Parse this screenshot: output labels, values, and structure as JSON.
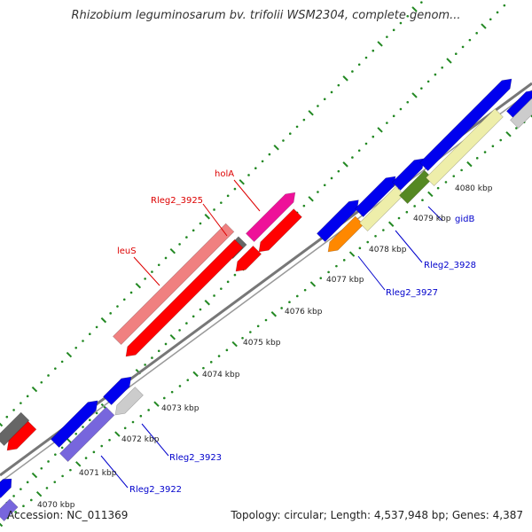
{
  "title": "Rhizobium leguminosarum bv. trifolii WSM2304, complete genom...",
  "footer": {
    "accession": "Accession: NC_011369",
    "summary": "Topology: circular; Length: 4,537,948 bp; Genes: 4,387"
  },
  "colors": {
    "blue": "#0000ee",
    "red": "#ff0000",
    "pink": "#f08080",
    "magenta": "#ee1199",
    "gray": "#666666",
    "light_gray": "#cccccc",
    "pale_yellow": "#eeeeaa",
    "olive": "#558822",
    "orange": "#ff8800",
    "lavender": "#7766dd",
    "dot_green": "#228822",
    "label_red": "#dd0000",
    "label_blue": "#0000cc"
  },
  "ticks": [
    {
      "label": "4070 kbp"
    },
    {
      "label": "4071 kbp"
    },
    {
      "label": "4072 kbp"
    },
    {
      "label": "4073 kbp"
    },
    {
      "label": "4074 kbp"
    },
    {
      "label": "4075 kbp"
    },
    {
      "label": "4076 kbp"
    },
    {
      "label": "4077 kbp"
    },
    {
      "label": "4078 kbp"
    },
    {
      "label": "4079 kbp"
    },
    {
      "label": "4080 kbp"
    }
  ],
  "gene_labels": [
    {
      "text": "holA",
      "color": "red"
    },
    {
      "text": "Rleg2_3925",
      "color": "red"
    },
    {
      "text": "leuS",
      "color": "red"
    },
    {
      "text": "gidB",
      "color": "blue"
    },
    {
      "text": "Rleg2_3928",
      "color": "blue"
    },
    {
      "text": "Rleg2_3927",
      "color": "blue"
    },
    {
      "text": "Rleg2_3923",
      "color": "blue"
    },
    {
      "text": "Rleg2_3922",
      "color": "blue"
    }
  ]
}
